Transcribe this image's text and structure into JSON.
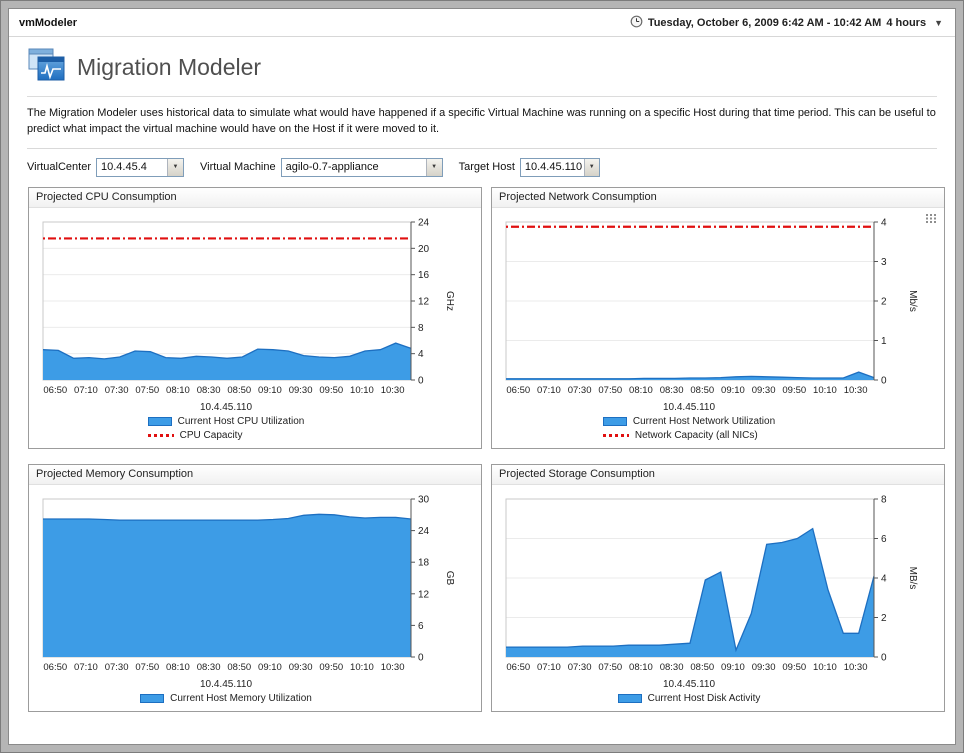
{
  "window": {
    "app_title": "vmModeler",
    "time_range": "Tuesday, October 6, 2009 6:42 AM - 10:42 AM",
    "duration": "4 hours"
  },
  "header": {
    "title": "Migration Modeler",
    "description": "The Migration Modeler uses historical data to simulate what would have happened if a specific Virtual Machine was running on a specific Host during that time period. This can be useful to predict what impact the virtual machine would have on the Host if it were moved to it."
  },
  "controls": [
    {
      "label": "VirtualCenter",
      "value": "10.4.45.4"
    },
    {
      "label": "Virtual Machine",
      "value": "agilo-0.7-appliance"
    },
    {
      "label": "Target Host",
      "value": "10.4.45.110"
    }
  ],
  "colors": {
    "area_fill": "#3d9ce6",
    "area_stroke": "#1d6fc1",
    "capacity_red": "#e01010"
  },
  "chart_data": [
    {
      "type": "area",
      "title": "Projected CPU Consumption",
      "xlabel": "10.4.45.110",
      "ylabel": "GHz",
      "ylim": [
        0,
        24
      ],
      "yticks": [
        0,
        4,
        8,
        12,
        16,
        20,
        24
      ],
      "categories": [
        "06:50",
        "07:10",
        "07:30",
        "07:50",
        "08:10",
        "08:30",
        "08:50",
        "09:10",
        "09:30",
        "09:50",
        "10:10",
        "10:30"
      ],
      "series": [
        {
          "name": "Current Host CPU Utilization",
          "values": [
            4.6,
            4.5,
            3.3,
            3.4,
            3.2,
            3.5,
            4.4,
            4.3,
            3.4,
            3.3,
            3.6,
            3.5,
            3.3,
            3.5,
            4.7,
            4.6,
            4.4,
            3.7,
            3.5,
            3.4,
            3.6,
            4.4,
            4.6,
            5.6,
            4.8
          ]
        }
      ],
      "capacity": {
        "name": "CPU Capacity",
        "value": 21.5
      },
      "options_icon": false
    },
    {
      "type": "area",
      "title": "Projected Network Consumption",
      "xlabel": "10.4.45.110",
      "ylabel": "Mb/s",
      "ylim": [
        0,
        4
      ],
      "yticks": [
        0,
        1,
        2,
        3,
        4
      ],
      "categories": [
        "06:50",
        "07:10",
        "07:30",
        "07:50",
        "08:10",
        "08:30",
        "08:50",
        "09:10",
        "09:30",
        "09:50",
        "10:10",
        "10:30"
      ],
      "series": [
        {
          "name": "Current Host Network Utilization",
          "values": [
            0.03,
            0.03,
            0.03,
            0.03,
            0.03,
            0.03,
            0.03,
            0.03,
            0.03,
            0.04,
            0.04,
            0.04,
            0.05,
            0.05,
            0.06,
            0.08,
            0.09,
            0.08,
            0.07,
            0.06,
            0.05,
            0.05,
            0.05,
            0.2,
            0.06
          ]
        }
      ],
      "capacity": {
        "name": "Network Capacity (all NICs)",
        "value": 3.88
      },
      "options_icon": true
    },
    {
      "type": "area",
      "title": "Projected Memory Consumption",
      "xlabel": "10.4.45.110",
      "ylabel": "GB",
      "ylim": [
        0,
        30
      ],
      "yticks": [
        0,
        6,
        12,
        18,
        24,
        30
      ],
      "categories": [
        "06:50",
        "07:10",
        "07:30",
        "07:50",
        "08:10",
        "08:30",
        "08:50",
        "09:10",
        "09:30",
        "09:50",
        "10:10",
        "10:30"
      ],
      "series": [
        {
          "name": "Current Host Memory Utilization",
          "values": [
            26.2,
            26.2,
            26.2,
            26.2,
            26.1,
            26.0,
            26.0,
            26.0,
            26.0,
            26.0,
            26.0,
            26.0,
            26.0,
            26.0,
            26.0,
            26.1,
            26.3,
            26.9,
            27.1,
            27.0,
            26.6,
            26.4,
            26.5,
            26.5,
            26.2
          ]
        }
      ],
      "capacity": null,
      "options_icon": false
    },
    {
      "type": "area",
      "title": "Projected Storage Consumption",
      "xlabel": "10.4.45.110",
      "ylabel": "MB/s",
      "ylim": [
        0,
        8
      ],
      "yticks": [
        0,
        2,
        4,
        6,
        8
      ],
      "categories": [
        "06:50",
        "07:10",
        "07:30",
        "07:50",
        "08:10",
        "08:30",
        "08:50",
        "09:10",
        "09:30",
        "09:50",
        "10:10",
        "10:30"
      ],
      "series": [
        {
          "name": "Current Host Disk Activity",
          "values": [
            0.5,
            0.5,
            0.5,
            0.5,
            0.5,
            0.55,
            0.55,
            0.55,
            0.6,
            0.6,
            0.6,
            0.65,
            0.7,
            3.9,
            4.3,
            0.35,
            2.2,
            5.7,
            5.8,
            6.0,
            6.5,
            3.4,
            1.2,
            1.2,
            4.1
          ]
        }
      ],
      "capacity": null,
      "options_icon": false
    }
  ]
}
